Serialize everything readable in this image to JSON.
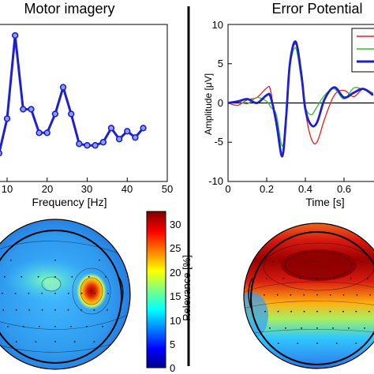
{
  "colors": {
    "main_series": "#1e1ed2",
    "blue_series": "#1e1ed2",
    "red_series": "#e02020",
    "green_series": "#30c030"
  },
  "left_panel": {
    "title": "Motor imagery",
    "xlabel": "Frequency [Hz]",
    "x_tick_labels": [
      "10",
      "20",
      "30",
      "40",
      "50"
    ]
  },
  "right_panel": {
    "title": "Error Potential",
    "xlabel": "Time [s]",
    "ylabel": "Amplitude [μV]",
    "x_tick_labels": [
      "0",
      "0.2",
      "0.4",
      "0.6"
    ],
    "y_tick_labels": [
      "10",
      "5",
      "0",
      "-5",
      "-10"
    ]
  },
  "colorbar": {
    "label": "Relevance [%]",
    "tick_labels": [
      "30",
      "25",
      "20",
      "15",
      "10",
      "5",
      "0"
    ]
  },
  "chart_data": [
    {
      "type": "line",
      "xlabel": "Frequency [Hz]",
      "xlim": [
        8,
        50
      ],
      "ylim": [
        0,
        10
      ],
      "series": [
        {
          "x": [
            8,
            10,
            12,
            14,
            16,
            18,
            20,
            22,
            24,
            26,
            28,
            30,
            32,
            34,
            36,
            38,
            40,
            42,
            44
          ],
          "y": [
            1.8,
            4.0,
            9.3,
            4.6,
            4.6,
            3.1,
            3.1,
            4.3,
            6.0,
            4.3,
            2.4,
            2.3,
            2.3,
            2.5,
            3.4,
            2.7,
            3.2,
            2.8,
            3.4
          ]
        }
      ]
    },
    {
      "type": "line",
      "xlabel": "Time [s]",
      "ylabel": "Amplitude [μV]",
      "xlim": [
        0,
        0.75
      ],
      "ylim": [
        -10,
        10
      ],
      "series": [
        {
          "color": "red",
          "x": [
            0,
            0.05,
            0.1,
            0.15,
            0.2,
            0.22,
            0.25,
            0.28,
            0.3,
            0.32,
            0.35,
            0.38,
            0.4,
            0.43,
            0.46,
            0.5,
            0.55,
            0.6,
            0.65,
            0.7,
            0.75
          ],
          "y": [
            0,
            -0.3,
            0.4,
            0.7,
            1.9,
            1.6,
            -3.0,
            -6.5,
            -2.0,
            5.0,
            7.5,
            3.8,
            -1.0,
            -4.5,
            -5.0,
            -2.0,
            1.0,
            1.6,
            0.8,
            1.8,
            1.2
          ]
        },
        {
          "color": "green",
          "x": [
            0,
            0.05,
            0.1,
            0.15,
            0.2,
            0.22,
            0.25,
            0.28,
            0.3,
            0.32,
            0.35,
            0.38,
            0.4,
            0.43,
            0.46,
            0.5,
            0.55,
            0.6,
            0.65,
            0.7,
            0.75
          ],
          "y": [
            0,
            0.2,
            -0.1,
            0.7,
            0.2,
            -0.5,
            -1.5,
            -5.5,
            -2.0,
            4.5,
            7.0,
            2.8,
            -0.5,
            -1.5,
            -0.5,
            1.0,
            1.8,
            0.5,
            1.9,
            1.7,
            1.3
          ]
        },
        {
          "color": "blue",
          "x": [
            0,
            0.05,
            0.1,
            0.15,
            0.2,
            0.22,
            0.25,
            0.28,
            0.3,
            0.32,
            0.35,
            0.38,
            0.4,
            0.43,
            0.46,
            0.5,
            0.55,
            0.6,
            0.65,
            0.7,
            0.75
          ],
          "y": [
            0,
            0.2,
            0.5,
            0.0,
            1.0,
            0.8,
            -2.5,
            -6.8,
            -2.0,
            5.0,
            7.8,
            3.5,
            -0.8,
            -2.8,
            -2.5,
            0.5,
            2.0,
            0.7,
            1.3,
            1.8,
            1.0
          ]
        }
      ]
    }
  ]
}
